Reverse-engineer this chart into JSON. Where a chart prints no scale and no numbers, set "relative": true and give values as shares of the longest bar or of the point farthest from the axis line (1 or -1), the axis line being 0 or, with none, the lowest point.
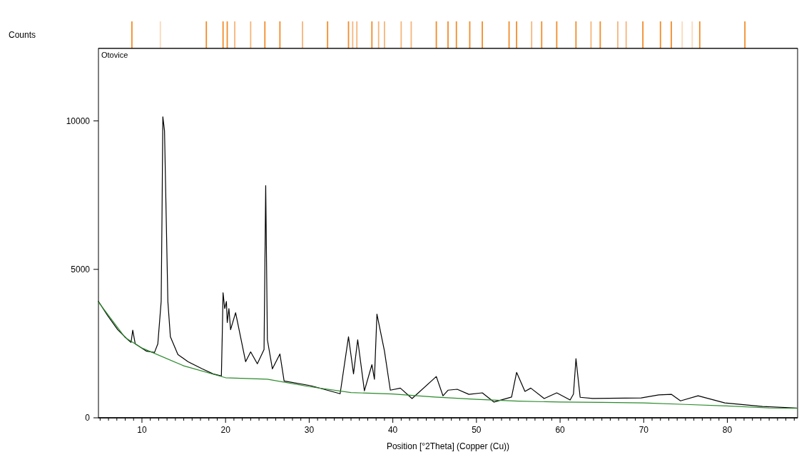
{
  "chart_data": [
    {
      "type": "bar",
      "relative": true,
      "xlim": [
        4.8,
        88.4
      ],
      "x": [
        8.8,
        12.2,
        17.7,
        19.7,
        20.2,
        21.1,
        23.0,
        24.7,
        26.5,
        29.2,
        32.2,
        34.7,
        35.2,
        35.7,
        37.5,
        38.3,
        39.0,
        41.0,
        42.2,
        45.2,
        46.6,
        47.6,
        49.2,
        50.7,
        53.9,
        54.8,
        56.6,
        57.8,
        59.6,
        61.9,
        63.7,
        64.8,
        66.9,
        67.9,
        69.9,
        72.0,
        73.3,
        74.6,
        75.8,
        76.7,
        82.1
      ],
      "values": [
        1,
        1,
        1,
        1,
        1,
        1,
        1,
        1,
        1,
        1,
        1,
        1,
        1,
        1,
        1,
        1,
        1,
        1,
        1,
        1,
        1,
        1,
        1,
        1,
        1,
        1,
        1,
        1,
        1,
        1,
        1,
        1,
        1,
        1,
        1,
        1,
        1,
        1,
        1,
        1,
        1
      ],
      "colors": [
        "#f28c28",
        "#fbd9bb",
        "#f28c28",
        "#f28c28",
        "#f28c28",
        "#f5b57a",
        "#f5b57a",
        "#f28c28",
        "#f28c28",
        "#f5b57a",
        "#f28c28",
        "#f28c28",
        "#f5b57a",
        "#f5b57a",
        "#f28c28",
        "#f5b57a",
        "#f5b57a",
        "#f5b57a",
        "#f5b57a",
        "#f28c28",
        "#f28c28",
        "#f28c28",
        "#f28c28",
        "#f28c28",
        "#f28c28",
        "#f28c28",
        "#f5b57a",
        "#f28c28",
        "#f28c28",
        "#f28c28",
        "#f5b57a",
        "#f28c28",
        "#f5b57a",
        "#f5b57a",
        "#f28c28",
        "#f28c28",
        "#f28c28",
        "#fbd9bb",
        "#fbd9bb",
        "#f28c28",
        "#f28c28"
      ]
    },
    {
      "type": "line",
      "xlabel": "Position [°2Theta] (Copper (Cu))",
      "ylabel": "Counts",
      "annotations": [
        "Otovice"
      ],
      "xlim": [
        4.8,
        88.4
      ],
      "ylim": [
        0,
        12440
      ],
      "yticks": [
        0,
        5000,
        10000
      ],
      "xticks": [
        {
          "value": 5,
          "label": null
        },
        {
          "value": 6,
          "label": null
        },
        {
          "value": 7,
          "label": null
        },
        {
          "value": 8,
          "label": null
        },
        {
          "value": 9,
          "label": null
        },
        10,
        {
          "value": 11,
          "label": null
        },
        {
          "value": 12,
          "label": null
        },
        {
          "value": 13,
          "label": null
        },
        {
          "value": 14,
          "label": null
        },
        {
          "value": 15,
          "label": null
        },
        {
          "value": 16,
          "label": null
        },
        {
          "value": 17,
          "label": null
        },
        {
          "value": 18,
          "label": null
        },
        {
          "value": 19,
          "label": null
        },
        20,
        {
          "value": 21,
          "label": null
        },
        {
          "value": 22,
          "label": null
        },
        {
          "value": 23,
          "label": null
        },
        {
          "value": 24,
          "label": null
        },
        {
          "value": 25,
          "label": null
        },
        {
          "value": 26,
          "label": null
        },
        {
          "value": 27,
          "label": null
        },
        {
          "value": 28,
          "label": null
        },
        {
          "value": 29,
          "label": null
        },
        30,
        {
          "value": 31,
          "label": null
        },
        {
          "value": 32,
          "label": null
        },
        {
          "value": 33,
          "label": null
        },
        {
          "value": 34,
          "label": null
        },
        {
          "value": 35,
          "label": null
        },
        {
          "value": 36,
          "label": null
        },
        {
          "value": 37,
          "label": null
        },
        {
          "value": 38,
          "label": null
        },
        {
          "value": 39,
          "label": null
        },
        40,
        {
          "value": 41,
          "label": null
        },
        {
          "value": 42,
          "label": null
        },
        {
          "value": 43,
          "label": null
        },
        {
          "value": 44,
          "label": null
        },
        {
          "value": 45,
          "label": null
        },
        {
          "value": 46,
          "label": null
        },
        {
          "value": 47,
          "label": null
        },
        {
          "value": 48,
          "label": null
        },
        {
          "value": 49,
          "label": null
        },
        50,
        {
          "value": 51,
          "label": null
        },
        {
          "value": 52,
          "label": null
        },
        {
          "value": 53,
          "label": null
        },
        {
          "value": 54,
          "label": null
        },
        {
          "value": 55,
          "label": null
        },
        {
          "value": 56,
          "label": null
        },
        {
          "value": 57,
          "label": null
        },
        {
          "value": 58,
          "label": null
        },
        {
          "value": 59,
          "label": null
        },
        60,
        {
          "value": 61,
          "label": null
        },
        {
          "value": 62,
          "label": null
        },
        {
          "value": 63,
          "label": null
        },
        {
          "value": 64,
          "label": null
        },
        {
          "value": 65,
          "label": null
        },
        {
          "value": 66,
          "label": null
        },
        {
          "value": 67,
          "label": null
        },
        {
          "value": 68,
          "label": null
        },
        {
          "value": 69,
          "label": null
        },
        70,
        {
          "value": 71,
          "label": null
        },
        {
          "value": 72,
          "label": null
        },
        {
          "value": 73,
          "label": null
        },
        {
          "value": 74,
          "label": null
        },
        {
          "value": 75,
          "label": null
        },
        {
          "value": 76,
          "label": null
        },
        {
          "value": 77,
          "label": null
        },
        {
          "value": 78,
          "label": null
        },
        {
          "value": 79,
          "label": null
        },
        80,
        {
          "value": 81,
          "label": null
        },
        {
          "value": 82,
          "label": null
        },
        {
          "value": 83,
          "label": null
        },
        {
          "value": 84,
          "label": null
        },
        {
          "value": 85,
          "label": null
        },
        {
          "value": 86,
          "label": null
        },
        {
          "value": 87,
          "label": null
        },
        {
          "value": 88,
          "label": null
        }
      ],
      "marker": "none",
      "line_style": "solid",
      "grid": false,
      "series": [
        {
          "color": "#000000",
          "x": [
            4.8,
            5.9,
            7.1,
            8.4,
            8.7,
            8.9,
            9.2,
            10.5,
            11.5,
            11.9,
            12.3,
            12.4,
            12.5,
            12.7,
            12.9,
            13.1,
            13.4,
            14.3,
            15.5,
            17.2,
            18.5,
            19.5,
            19.6,
            19.7,
            19.9,
            20.1,
            20.2,
            20.4,
            20.6,
            21.2,
            22.4,
            23.0,
            23.8,
            24.6,
            24.8,
            25.0,
            25.6,
            26.5,
            27.0,
            30.2,
            33.7,
            34.7,
            35.3,
            35.8,
            36.6,
            37.5,
            37.8,
            38.1,
            39.0,
            39.7,
            40.9,
            42.3,
            45.2,
            46.0,
            46.6,
            47.7,
            49.1,
            50.7,
            52.1,
            54.2,
            54.8,
            55.8,
            56.5,
            58.1,
            59.6,
            61.2,
            61.6,
            61.9,
            62.4,
            63.9,
            69.7,
            71.8,
            73.3,
            74.4,
            76.5,
            79.7,
            84.2,
            88.3
          ],
          "values": [
            3920,
            3440,
            2970,
            2610,
            2540,
            2950,
            2490,
            2250,
            2200,
            2490,
            3920,
            6790,
            10140,
            9670,
            6790,
            3920,
            2730,
            2130,
            1890,
            1650,
            1480,
            1410,
            2730,
            4210,
            3680,
            3920,
            3210,
            3680,
            2970,
            3540,
            1890,
            2220,
            1820,
            2300,
            7820,
            2630,
            1650,
            2150,
            1240,
            1080,
            810,
            2730,
            1480,
            2630,
            910,
            1790,
            1300,
            3490,
            2250,
            930,
            1000,
            650,
            1390,
            740,
            930,
            960,
            790,
            840,
            530,
            700,
            1530,
            890,
            1000,
            650,
            840,
            600,
            800,
            1990,
            690,
            650,
            670,
            770,
            790,
            570,
            740,
            500,
            380,
            330
          ]
        },
        {
          "color": "#2a8a2a",
          "x": [
            4.8,
            8,
            10,
            15,
            20,
            25,
            30,
            35,
            40,
            45,
            50,
            55,
            60,
            65,
            70,
            75,
            80,
            85,
            88.3
          ],
          "values": [
            3900,
            2700,
            2350,
            1750,
            1350,
            1300,
            1050,
            850,
            800,
            700,
            620,
            560,
            530,
            520,
            500,
            450,
            400,
            330,
            320
          ]
        }
      ]
    }
  ]
}
